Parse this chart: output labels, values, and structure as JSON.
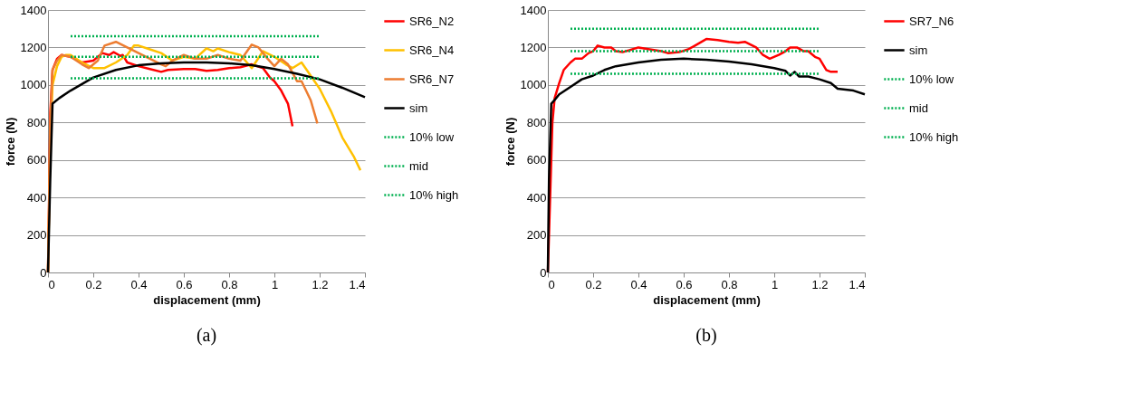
{
  "chart_data": [
    {
      "type": "line",
      "xlabel": "displacement (mm)",
      "ylabel": "force (N)",
      "xlim": [
        0,
        1.4
      ],
      "ylim": [
        0,
        1400
      ],
      "xticks": [
        0,
        0.2,
        0.4,
        0.6,
        0.8,
        1,
        1.2,
        1.4
      ],
      "yticks": [
        0,
        200,
        400,
        600,
        800,
        1000,
        1200,
        1400
      ],
      "grid": "y",
      "legend": "right",
      "marker": "none",
      "annotations": [
        "(a)"
      ],
      "series": [
        {
          "name": "SR6_N2",
          "color": "#ff0000",
          "line_style": "solid",
          "x": [
            0,
            0.005,
            0.01,
            0.02,
            0.04,
            0.06,
            0.1,
            0.15,
            0.2,
            0.24,
            0.27,
            0.29,
            0.32,
            0.33,
            0.35,
            0.4,
            0.45,
            0.5,
            0.53,
            0.6,
            0.65,
            0.7,
            0.75,
            0.8,
            0.85,
            0.9,
            0.95,
            0.98,
            1.0,
            1.03,
            1.06,
            1.08
          ],
          "values": [
            0,
            400,
            850,
            1080,
            1140,
            1160,
            1150,
            1120,
            1130,
            1170,
            1160,
            1175,
            1155,
            1160,
            1120,
            1100,
            1085,
            1070,
            1080,
            1085,
            1085,
            1075,
            1080,
            1090,
            1095,
            1110,
            1090,
            1040,
            1020,
            970,
            900,
            780
          ]
        },
        {
          "name": "SR6_N4",
          "color": "#ffc000",
          "line_style": "solid",
          "x": [
            0,
            0.01,
            0.02,
            0.04,
            0.06,
            0.08,
            0.1,
            0.15,
            0.2,
            0.25,
            0.3,
            0.35,
            0.38,
            0.4,
            0.45,
            0.5,
            0.55,
            0.6,
            0.65,
            0.7,
            0.73,
            0.75,
            0.8,
            0.85,
            0.9,
            0.95,
            1.0,
            1.05,
            1.08,
            1.12,
            1.16,
            1.2,
            1.25,
            1.3,
            1.35,
            1.38
          ],
          "values": [
            0,
            700,
            1000,
            1100,
            1150,
            1160,
            1160,
            1120,
            1090,
            1090,
            1120,
            1160,
            1210,
            1210,
            1190,
            1170,
            1130,
            1150,
            1140,
            1195,
            1180,
            1195,
            1175,
            1160,
            1090,
            1180,
            1150,
            1110,
            1090,
            1120,
            1050,
            980,
            860,
            720,
            620,
            545
          ]
        },
        {
          "name": "SR6_N7",
          "color": "#ed7d31",
          "line_style": "solid",
          "x": [
            0,
            0.01,
            0.02,
            0.04,
            0.06,
            0.1,
            0.15,
            0.18,
            0.22,
            0.25,
            0.3,
            0.35,
            0.4,
            0.45,
            0.5,
            0.52,
            0.55,
            0.6,
            0.65,
            0.7,
            0.75,
            0.8,
            0.85,
            0.9,
            0.93,
            0.97,
            1.0,
            1.03,
            1.06,
            1.1,
            1.12,
            1.16,
            1.19
          ],
          "values": [
            0,
            800,
            1080,
            1130,
            1160,
            1150,
            1110,
            1090,
            1130,
            1210,
            1230,
            1200,
            1170,
            1140,
            1110,
            1100,
            1130,
            1160,
            1140,
            1140,
            1160,
            1140,
            1130,
            1215,
            1200,
            1140,
            1100,
            1140,
            1110,
            1020,
            1020,
            920,
            795
          ]
        },
        {
          "name": "sim",
          "color": "#000000",
          "line_style": "solid",
          "x": [
            0,
            0.01,
            0.02,
            0.05,
            0.1,
            0.2,
            0.3,
            0.4,
            0.5,
            0.6,
            0.7,
            0.8,
            0.9,
            1.0,
            1.1,
            1.2,
            1.3,
            1.4
          ],
          "values": [
            0,
            500,
            900,
            930,
            970,
            1040,
            1080,
            1105,
            1115,
            1120,
            1120,
            1115,
            1105,
            1085,
            1060,
            1030,
            985,
            935
          ]
        },
        {
          "name": "10% low",
          "color": "#00b050",
          "line_style": "dotted",
          "x": [
            0.1,
            1.2
          ],
          "values": [
            1035,
            1035
          ]
        },
        {
          "name": "mid",
          "color": "#00b050",
          "line_style": "dotted",
          "x": [
            0.1,
            1.2
          ],
          "values": [
            1150,
            1150
          ]
        },
        {
          "name": "10% high",
          "color": "#00b050",
          "line_style": "dotted",
          "x": [
            0.1,
            1.2
          ],
          "values": [
            1260,
            1260
          ]
        }
      ]
    },
    {
      "type": "line",
      "xlabel": "displacement (mm)",
      "ylabel": "force (N)",
      "xlim": [
        0,
        1.4
      ],
      "ylim": [
        0,
        1400
      ],
      "xticks": [
        0,
        0.2,
        0.4,
        0.6,
        0.8,
        1,
        1.2,
        1.4
      ],
      "yticks": [
        0,
        200,
        400,
        600,
        800,
        1000,
        1200,
        1400
      ],
      "grid": "y",
      "legend": "right",
      "marker": "none",
      "annotations": [
        "(b)"
      ],
      "series": [
        {
          "name": "SR7_N6",
          "color": "#ff0000",
          "line_style": "solid",
          "x": [
            0,
            0.01,
            0.02,
            0.03,
            0.05,
            0.07,
            0.1,
            0.12,
            0.15,
            0.18,
            0.2,
            0.22,
            0.25,
            0.28,
            0.3,
            0.33,
            0.36,
            0.4,
            0.45,
            0.5,
            0.53,
            0.58,
            0.62,
            0.65,
            0.7,
            0.75,
            0.8,
            0.84,
            0.87,
            0.92,
            0.95,
            0.98,
            1.02,
            1.05,
            1.07,
            1.1,
            1.13,
            1.15,
            1.18,
            1.2,
            1.23,
            1.25,
            1.28
          ],
          "values": [
            0,
            400,
            800,
            930,
            1010,
            1080,
            1120,
            1140,
            1140,
            1170,
            1180,
            1210,
            1200,
            1200,
            1180,
            1175,
            1185,
            1200,
            1190,
            1180,
            1170,
            1175,
            1190,
            1210,
            1245,
            1240,
            1230,
            1225,
            1230,
            1200,
            1160,
            1140,
            1160,
            1180,
            1200,
            1200,
            1180,
            1180,
            1150,
            1140,
            1080,
            1070,
            1070
          ]
        },
        {
          "name": "sim",
          "color": "#000000",
          "line_style": "solid",
          "x": [
            0,
            0.005,
            0.015,
            0.03,
            0.05,
            0.1,
            0.15,
            0.2,
            0.25,
            0.3,
            0.4,
            0.5,
            0.6,
            0.7,
            0.8,
            0.9,
            1.0,
            1.05,
            1.07,
            1.09,
            1.11,
            1.15,
            1.2,
            1.25,
            1.28,
            1.35,
            1.4
          ],
          "values": [
            0,
            500,
            900,
            920,
            950,
            990,
            1030,
            1050,
            1080,
            1100,
            1120,
            1135,
            1140,
            1135,
            1125,
            1110,
            1090,
            1075,
            1050,
            1070,
            1045,
            1045,
            1030,
            1010,
            980,
            970,
            950
          ]
        },
        {
          "name": "10% low",
          "color": "#00b050",
          "line_style": "dotted",
          "x": [
            0.1,
            1.2
          ],
          "values": [
            1060,
            1060
          ]
        },
        {
          "name": "mid",
          "color": "#00b050",
          "line_style": "dotted",
          "x": [
            0.1,
            1.2
          ],
          "values": [
            1180,
            1180
          ]
        },
        {
          "name": "10% high",
          "color": "#00b050",
          "line_style": "dotted",
          "x": [
            0.1,
            1.2
          ],
          "values": [
            1300,
            1300
          ]
        }
      ]
    }
  ]
}
